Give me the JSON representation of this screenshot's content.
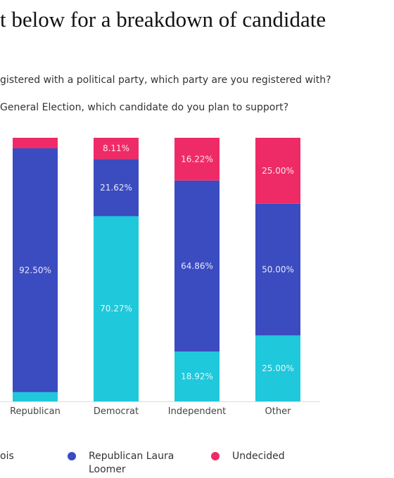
{
  "intro_text": "t below for a breakdown of candidate",
  "questions": {
    "q1": "gistered with a political party, which party are you registered with?",
    "q2": "General Election, which candidate do you plan to support?"
  },
  "legend": [
    {
      "label": "ois",
      "color": "#1fc8db"
    },
    {
      "label": "Republican Laura Loomer",
      "color": "#3b4bc0"
    },
    {
      "label": "Undecided",
      "color": "#ef2b67"
    }
  ],
  "chart_data": {
    "type": "bar",
    "stacked": true,
    "categories": [
      "Republican",
      "Democrat",
      "Independent",
      "Other"
    ],
    "ylim": [
      0,
      100
    ],
    "series": [
      {
        "name": "ois",
        "color": "#1fc8db",
        "values": [
          3.5,
          70.27,
          18.92,
          25.0
        ],
        "labels": [
          "",
          "70.27%",
          "18.92%",
          "25.00%"
        ]
      },
      {
        "name": "Republican Laura Loomer",
        "color": "#3b4bc0",
        "values": [
          92.5,
          21.62,
          64.86,
          50.0
        ],
        "labels": [
          "92.50%",
          "21.62%",
          "64.86%",
          "50.00%"
        ]
      },
      {
        "name": "Undecided",
        "color": "#ef2b67",
        "values": [
          4.0,
          8.11,
          16.22,
          25.0
        ],
        "labels": [
          "",
          "8.11%",
          "16.22%",
          "25.00%"
        ]
      }
    ]
  }
}
